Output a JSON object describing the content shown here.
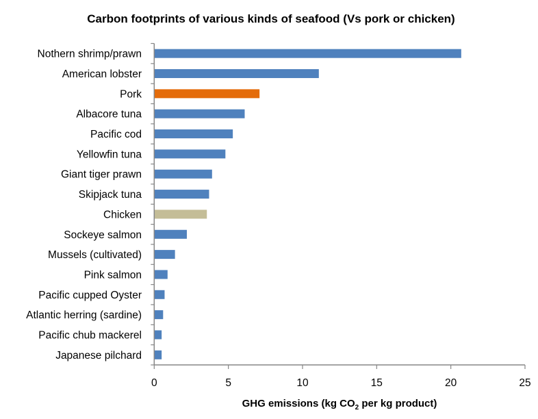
{
  "chart_data": {
    "type": "bar",
    "orientation": "horizontal",
    "title": "Carbon footprints of various kinds of seafood (Vs pork or chicken)",
    "xlabel_parts": [
      "GHG emissions (kg CO",
      "2",
      " per kg product)"
    ],
    "ylabel": "",
    "xlim": [
      0,
      25
    ],
    "xticks": [
      0,
      5,
      10,
      15,
      20,
      25
    ],
    "grid": false,
    "legend": "none",
    "categories": [
      "Nothern shrimp/prawn",
      "American lobster",
      "Pork",
      "Albacore tuna",
      "Pacific cod",
      "Yellowfin tuna",
      "Giant tiger prawn",
      "Skipjack tuna",
      "Chicken",
      "Sockeye salmon",
      "Mussels (cultivated)",
      "Pink salmon",
      "Pacific cupped Oyster",
      "Atlantic herring (sardine)",
      "Pacific chub mackerel",
      "Japanese pilchard"
    ],
    "values": [
      20.7,
      11.1,
      7.1,
      6.1,
      5.3,
      4.8,
      3.9,
      3.7,
      3.55,
      2.2,
      1.4,
      0.9,
      0.7,
      0.6,
      0.5,
      0.5
    ],
    "colors": [
      "#4f81bd",
      "#4f81bd",
      "#e46c0a",
      "#4f81bd",
      "#4f81bd",
      "#4f81bd",
      "#4f81bd",
      "#4f81bd",
      "#c4bd97",
      "#4f81bd",
      "#4f81bd",
      "#4f81bd",
      "#4f81bd",
      "#4f81bd",
      "#4f81bd",
      "#4f81bd"
    ],
    "axis_color": "#868686"
  }
}
